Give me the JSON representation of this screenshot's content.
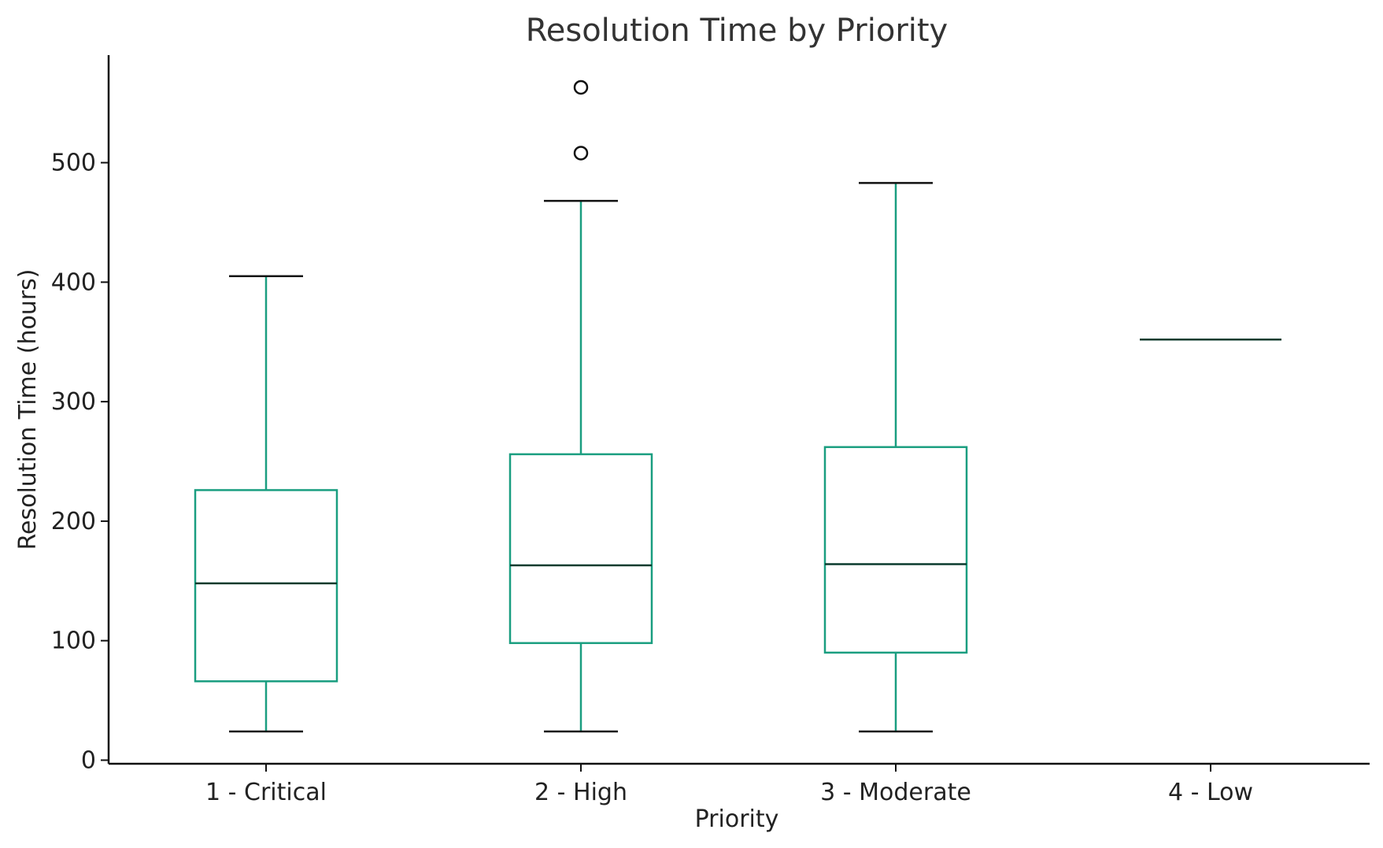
{
  "chart_data": {
    "type": "box",
    "title": "Resolution Time by Priority",
    "xlabel": "Priority",
    "ylabel": "Resolution Time (hours)",
    "categories": [
      "1 - Critical",
      "2 - High",
      "3 - Moderate",
      "4 - Low"
    ],
    "ylim": [
      -3,
      590
    ],
    "yticks": [
      0,
      100,
      200,
      300,
      400,
      500
    ],
    "grid": false,
    "boxes": [
      {
        "category": "1 - Critical",
        "whisker_low": 24,
        "q1": 66,
        "median": 148,
        "q3": 226,
        "whisker_high": 405,
        "outliers": []
      },
      {
        "category": "2 - High",
        "whisker_low": 24,
        "q1": 98,
        "median": 163,
        "q3": 256,
        "whisker_high": 468,
        "outliers": [
          508,
          563
        ]
      },
      {
        "category": "3 - Moderate",
        "whisker_low": 24,
        "q1": 90,
        "median": 164,
        "q3": 262,
        "whisker_high": 483,
        "outliers": []
      },
      {
        "category": "4 - Low",
        "whisker_low": 352,
        "q1": 352,
        "median": 352,
        "q3": 352,
        "whisker_high": 352,
        "outliers": []
      }
    ],
    "colors": {
      "box": "#1a9e80",
      "median": "#0b3b2e",
      "caps": "#111111",
      "axis": "#111111",
      "outlier": "#111111"
    }
  }
}
